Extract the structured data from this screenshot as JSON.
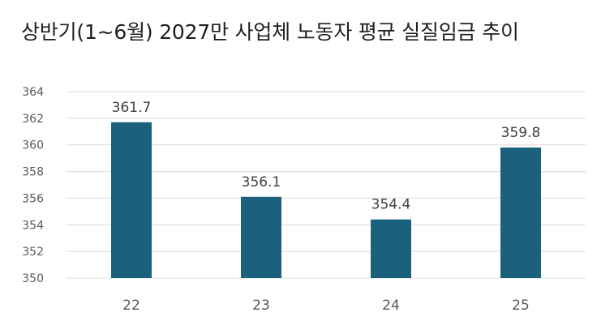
{
  "chart_data": {
    "type": "bar",
    "title": "상반기(1~6월) 2027만 사업체 노동자 평균 실질임금 추이",
    "categories": [
      "22",
      "23",
      "24",
      "25"
    ],
    "values": [
      361.7,
      356.1,
      354.4,
      359.8
    ],
    "value_labels": [
      "361.7",
      "356.1",
      "354.4",
      "359.8"
    ],
    "ylim": [
      350,
      364
    ],
    "yticks": [
      350,
      352,
      354,
      356,
      358,
      360,
      362,
      364
    ],
    "grid": true,
    "bar_color": "#1b607d",
    "grid_color": "#d9d9d9",
    "tick_color": "#595959",
    "label_color": "#404040"
  }
}
